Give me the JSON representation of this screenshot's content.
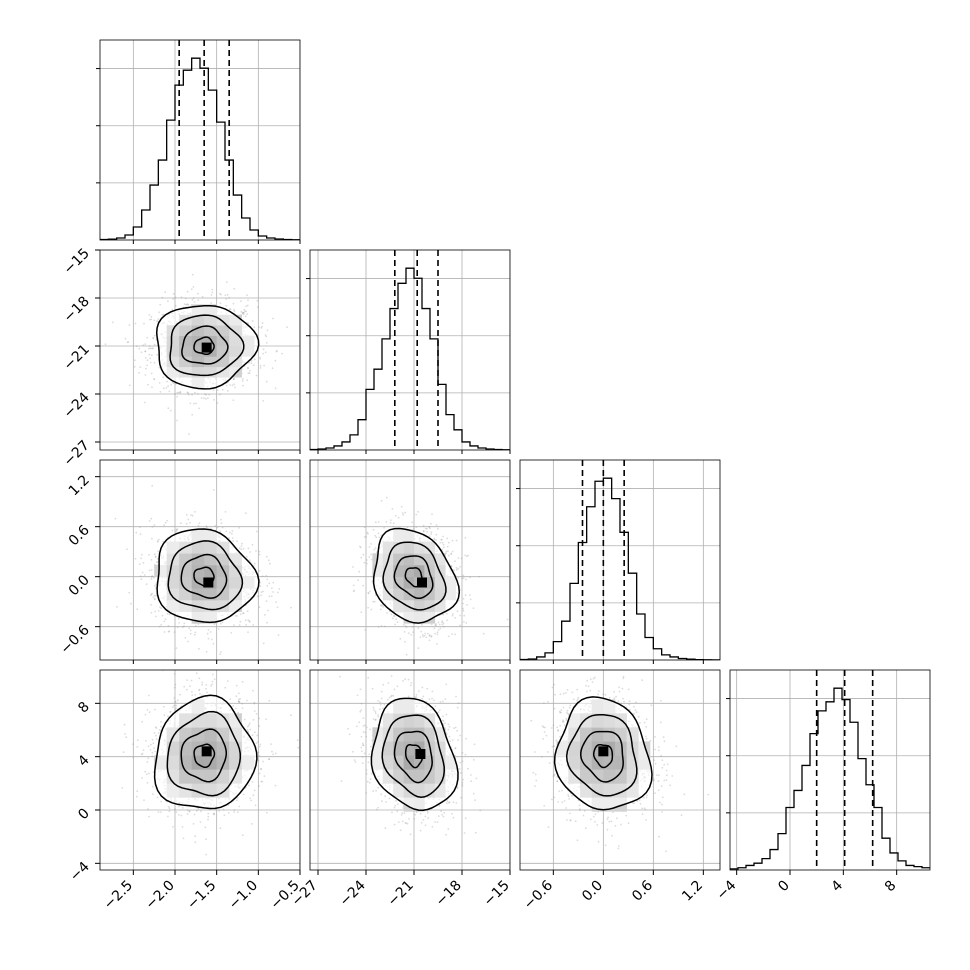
{
  "chart_data": {
    "type": "corner",
    "n_params": 4,
    "grid": true,
    "parameters": [
      {
        "index": 0,
        "range": [
          -2.9,
          -0.5
        ],
        "ticks": [
          -2.5,
          -2.0,
          -1.5,
          -1.0,
          -0.5
        ],
        "tick_labels": [
          "−2.5",
          "−2.0",
          "−1.5",
          "−1.0",
          "−0.5"
        ],
        "quantiles": [
          -1.95,
          -1.65,
          -1.35
        ],
        "hist_bin_edges": [
          -2.9,
          -2.8,
          -2.7,
          -2.6,
          -2.5,
          -2.4,
          -2.3,
          -2.2,
          -2.1,
          -2.0,
          -1.9,
          -1.8,
          -1.7,
          -1.6,
          -1.5,
          -1.4,
          -1.3,
          -1.2,
          -1.1,
          -1.0,
          -0.9,
          -0.8,
          -0.7,
          -0.6,
          -0.5
        ],
        "hist_counts": [
          0.5,
          0.8,
          2,
          5,
          13,
          30,
          55,
          80,
          120,
          155,
          170,
          182,
          172,
          150,
          118,
          80,
          45,
          22,
          10,
          4,
          2,
          1,
          0.5,
          0.2
        ]
      },
      {
        "index": 1,
        "range": [
          -27.5,
          -15
        ],
        "ticks": [
          -27,
          -24,
          -21,
          -18,
          -15
        ],
        "tick_labels": [
          "−27",
          "−24",
          "−21",
          "−18",
          "−15"
        ],
        "quantiles": [
          -22.2,
          -20.8,
          -19.5
        ],
        "hist_bin_edges": [
          -27.5,
          -27.0,
          -26.5,
          -26.0,
          -25.5,
          -25.0,
          -24.5,
          -24.0,
          -23.5,
          -23.0,
          -22.5,
          -22.0,
          -21.5,
          -21.0,
          -20.5,
          -20.0,
          -19.5,
          -19.0,
          -18.5,
          -18.0,
          -17.5,
          -17.0,
          -16.5,
          -16.0,
          -15.5,
          -15.0
        ],
        "hist_counts": [
          0.5,
          1,
          2,
          4,
          8,
          15,
          30,
          60,
          80,
          110,
          140,
          165,
          180,
          170,
          140,
          110,
          65,
          35,
          20,
          8,
          4,
          2,
          1,
          0.5,
          0.2
        ]
      },
      {
        "index": 2,
        "range": [
          -1.0,
          1.4
        ],
        "ticks": [
          -0.6,
          0.0,
          0.6,
          1.2
        ],
        "tick_labels": [
          "−0.6",
          "0.0",
          "0.6",
          "1.2"
        ],
        "quantiles": [
          -0.25,
          0.0,
          0.25
        ],
        "hist_bin_edges": [
          -1.0,
          -0.9,
          -0.8,
          -0.7,
          -0.6,
          -0.5,
          -0.4,
          -0.3,
          -0.2,
          -0.1,
          0.0,
          0.1,
          0.2,
          0.3,
          0.4,
          0.5,
          0.6,
          0.7,
          0.8,
          0.9,
          1.0,
          1.1,
          1.2,
          1.3,
          1.4
        ],
        "hist_counts": [
          0.5,
          1,
          3,
          7,
          18,
          38,
          75,
          115,
          150,
          175,
          178,
          158,
          125,
          85,
          45,
          22,
          11,
          5,
          3,
          1.5,
          0.8,
          0.4,
          0.2,
          0.1
        ]
      },
      {
        "index": 3,
        "range": [
          -4.5,
          10.5
        ],
        "ticks": [
          -4,
          0,
          4,
          8
        ],
        "tick_labels": [
          "−4",
          "0",
          "4",
          "8"
        ],
        "quantiles": [
          2.0,
          4.1,
          6.2
        ],
        "hist_bin_edges": [
          -4.5,
          -3.9,
          -3.3,
          -2.7,
          -2.1,
          -1.5,
          -0.9,
          -0.3,
          0.3,
          0.9,
          1.5,
          2.1,
          2.7,
          3.3,
          3.9,
          4.5,
          5.1,
          5.7,
          6.3,
          6.9,
          7.5,
          8.1,
          8.7,
          9.3,
          9.9,
          10.5
        ],
        "hist_counts": [
          1,
          2,
          4,
          6,
          10,
          18,
          32,
          55,
          70,
          92,
          120,
          140,
          148,
          160,
          150,
          130,
          98,
          75,
          55,
          28,
          15,
          8,
          4,
          3,
          2
        ]
      }
    ],
    "pairs": [
      {
        "row": 1,
        "col": 0,
        "mean": [
          -1.65,
          -21.0
        ],
        "sigma": [
          0.3,
          1.3
        ],
        "rho": 0.02,
        "peak": [
          -1.62,
          -21.1
        ]
      },
      {
        "row": 2,
        "col": 0,
        "mean": [
          -1.65,
          0.0
        ],
        "sigma": [
          0.3,
          0.28
        ],
        "rho": -0.08,
        "peak": [
          -1.6,
          -0.07
        ]
      },
      {
        "row": 2,
        "col": 1,
        "mean": [
          -21.0,
          0.0
        ],
        "sigma": [
          1.3,
          0.28
        ],
        "rho": -0.2,
        "peak": [
          -20.5,
          -0.07
        ]
      },
      {
        "row": 3,
        "col": 0,
        "mean": [
          -1.65,
          4.1
        ],
        "sigma": [
          0.3,
          2.1
        ],
        "rho": 0.05,
        "peak": [
          -1.62,
          4.4
        ]
      },
      {
        "row": 3,
        "col": 1,
        "mean": [
          -21.0,
          4.1
        ],
        "sigma": [
          1.3,
          2.1
        ],
        "rho": -0.18,
        "peak": [
          -20.6,
          4.2
        ]
      },
      {
        "row": 3,
        "col": 2,
        "mean": [
          0.0,
          4.1
        ],
        "sigma": [
          0.28,
          2.1
        ],
        "rho": -0.1,
        "peak": [
          0.0,
          4.4
        ]
      }
    ]
  }
}
